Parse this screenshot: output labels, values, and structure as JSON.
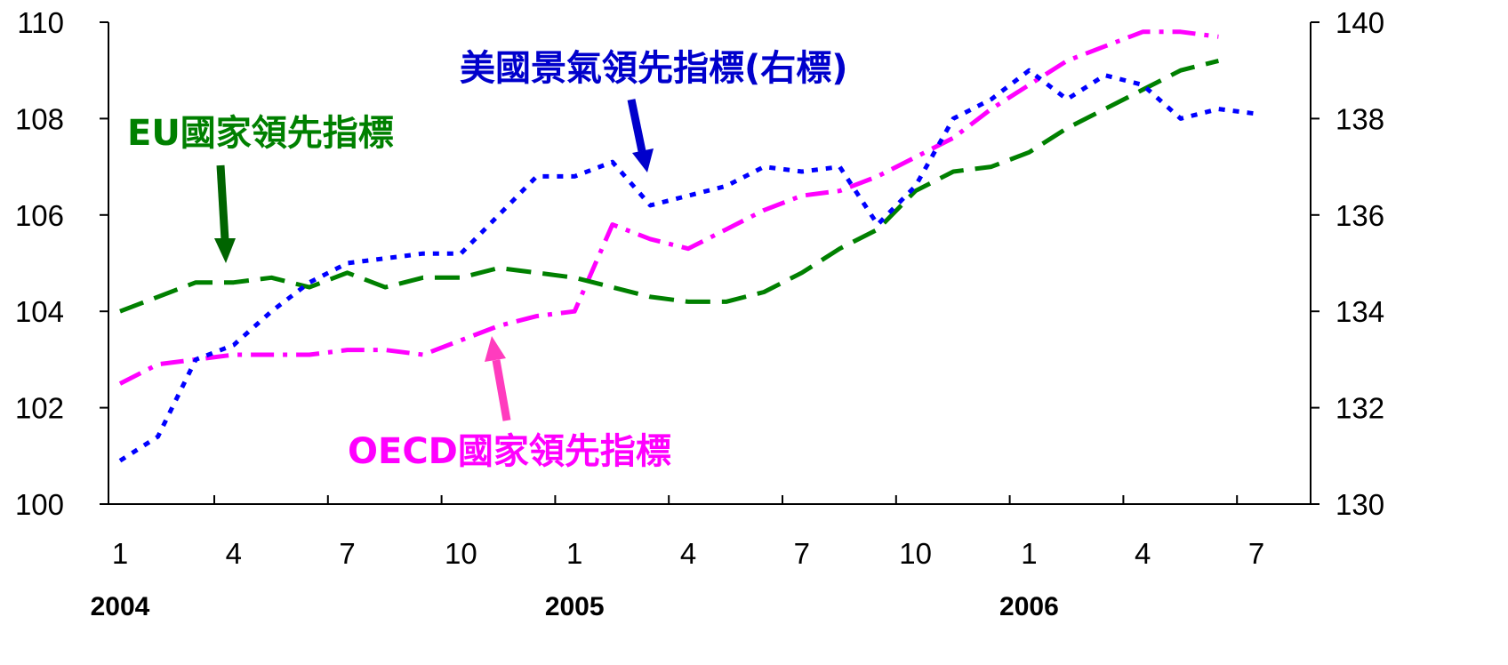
{
  "chart_data": {
    "type": "line",
    "x_tick_labels": [
      "1",
      "4",
      "7",
      "10",
      "1",
      "4",
      "7",
      "10",
      "1",
      "4",
      "7"
    ],
    "year_labels": [
      "2004",
      "2005",
      "2006"
    ],
    "y_left": {
      "ticks": [
        "100",
        "102",
        "104",
        "106",
        "108",
        "110"
      ],
      "ylim": [
        100,
        110
      ]
    },
    "y_right": {
      "ticks": [
        "130",
        "132",
        "134",
        "136",
        "138",
        "140"
      ],
      "ylim": [
        130,
        140
      ]
    },
    "x_months": [
      "2004-01",
      "2004-02",
      "2004-03",
      "2004-04",
      "2004-05",
      "2004-06",
      "2004-07",
      "2004-08",
      "2004-09",
      "2004-10",
      "2004-11",
      "2004-12",
      "2005-01",
      "2005-02",
      "2005-03",
      "2005-04",
      "2005-05",
      "2005-06",
      "2005-07",
      "2005-08",
      "2005-09",
      "2005-10",
      "2005-11",
      "2005-12",
      "2006-01",
      "2006-02",
      "2006-03",
      "2006-04",
      "2006-05",
      "2006-06",
      "2006-07"
    ],
    "series": [
      {
        "name": "美國景氣領先指標(右標)",
        "axis": "right",
        "color": "#0000ff",
        "dash": "dotted",
        "values": [
          130.9,
          131.4,
          133.0,
          133.3,
          134.0,
          134.6,
          135.0,
          135.1,
          135.2,
          135.2,
          136.0,
          136.8,
          136.8,
          137.1,
          136.2,
          136.4,
          136.6,
          137.0,
          136.9,
          137.0,
          135.8,
          136.6,
          138.0,
          138.4,
          139.0,
          138.4,
          138.9,
          138.7,
          138.0,
          138.2,
          138.1
        ]
      },
      {
        "name": "EU國家領先指標",
        "axis": "left",
        "color": "#008000",
        "dash": "long-dash",
        "values": [
          104.0,
          104.3,
          104.6,
          104.6,
          104.7,
          104.5,
          104.8,
          104.5,
          104.7,
          104.7,
          104.9,
          104.8,
          104.7,
          104.5,
          104.3,
          104.2,
          104.2,
          104.4,
          104.8,
          105.3,
          105.7,
          106.5,
          106.9,
          107.0,
          107.3,
          107.8,
          108.2,
          108.6,
          109.0,
          109.2,
          null
        ]
      },
      {
        "name": "OECD國家領先指標",
        "axis": "left",
        "color": "#ff00ff",
        "dash": "dash-dot",
        "values": [
          102.5,
          102.9,
          103.0,
          103.1,
          103.1,
          103.1,
          103.2,
          103.2,
          103.1,
          103.4,
          103.7,
          103.9,
          104.0,
          105.8,
          105.5,
          105.3,
          105.7,
          106.1,
          106.4,
          106.5,
          106.8,
          107.2,
          107.6,
          108.2,
          108.7,
          109.2,
          109.5,
          109.8,
          109.8,
          109.7,
          null
        ]
      }
    ],
    "annotations": {
      "us": "美國景氣領先指標(右標)",
      "eu": "EU國家領先指標",
      "oecd": "OECD國家領先指標"
    },
    "grid": false
  }
}
